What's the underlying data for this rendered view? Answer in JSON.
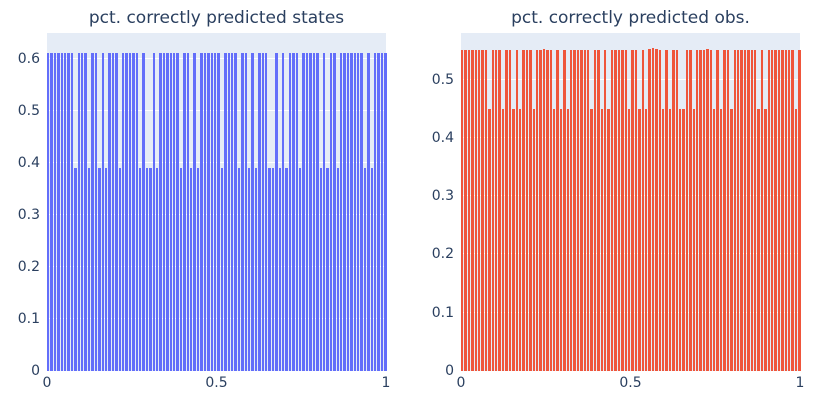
{
  "style": {
    "paper_bg": "#FFFFFF",
    "plot_bg": "#E5ECF6",
    "grid_color": "#FFFFFF",
    "text_color": "#2a3f5f",
    "blue_bar_color": "#636EFA",
    "red_bar_color": "#EF553B"
  },
  "chart_data": [
    {
      "type": "bar",
      "title": "pct. correctly predicted states",
      "bar_color": "#636EFA",
      "xlabel": "",
      "ylabel": "",
      "x_range": [
        0,
        1
      ],
      "n_bars": 100,
      "x_tick_values": [
        0,
        0.5,
        1
      ],
      "x_tick_labels": [
        "0",
        "0.5",
        "1"
      ],
      "y_tick_values": [
        0,
        0.1,
        0.2,
        0.3,
        0.4,
        0.5,
        0.6
      ],
      "y_tick_labels": [
        "0",
        "0.1",
        "0.2",
        "0.3",
        "0.4",
        "0.5",
        "0.6"
      ],
      "ylim": [
        0,
        0.649
      ],
      "grid": true,
      "legend": false,
      "values": [
        0.61,
        0.61,
        0.61,
        0.61,
        0.61,
        0.61,
        0.61,
        0.61,
        0.39,
        0.61,
        0.61,
        0.61,
        0.39,
        0.61,
        0.61,
        0.39,
        0.61,
        0.39,
        0.61,
        0.61,
        0.61,
        0.39,
        0.61,
        0.61,
        0.61,
        0.61,
        0.61,
        0.39,
        0.61,
        0.39,
        0.39,
        0.61,
        0.39,
        0.61,
        0.61,
        0.61,
        0.61,
        0.61,
        0.61,
        0.39,
        0.61,
        0.61,
        0.39,
        0.61,
        0.39,
        0.61,
        0.61,
        0.61,
        0.61,
        0.61,
        0.61,
        0.39,
        0.61,
        0.61,
        0.61,
        0.61,
        0.39,
        0.61,
        0.61,
        0.39,
        0.61,
        0.39,
        0.61,
        0.61,
        0.61,
        0.39,
        0.39,
        0.61,
        0.39,
        0.61,
        0.39,
        0.61,
        0.61,
        0.61,
        0.39,
        0.61,
        0.61,
        0.61,
        0.61,
        0.61,
        0.39,
        0.61,
        0.39,
        0.61,
        0.61,
        0.39,
        0.61,
        0.61,
        0.61,
        0.61,
        0.61,
        0.61,
        0.61,
        0.39,
        0.61,
        0.39,
        0.61,
        0.61,
        0.61,
        0.61
      ]
    },
    {
      "type": "bar",
      "title": "pct. correctly predicted obs.",
      "bar_color": "#EF553B",
      "xlabel": "",
      "ylabel": "",
      "x_range": [
        0,
        1
      ],
      "n_bars": 100,
      "x_tick_values": [
        0,
        0.5,
        1
      ],
      "x_tick_labels": [
        "0",
        "0.5",
        "1"
      ],
      "y_tick_values": [
        0,
        0.1,
        0.2,
        0.3,
        0.4,
        0.5
      ],
      "y_tick_labels": [
        "0",
        "0.1",
        "0.2",
        "0.3",
        "0.4",
        "0.5"
      ],
      "ylim": [
        0,
        0.58
      ],
      "grid": true,
      "legend": false,
      "values": [
        0.55,
        0.55,
        0.55,
        0.55,
        0.55,
        0.55,
        0.55,
        0.55,
        0.45,
        0.55,
        0.55,
        0.55,
        0.45,
        0.55,
        0.55,
        0.45,
        0.55,
        0.45,
        0.55,
        0.55,
        0.55,
        0.45,
        0.55,
        0.55,
        0.552,
        0.55,
        0.55,
        0.45,
        0.55,
        0.45,
        0.55,
        0.45,
        0.55,
        0.55,
        0.55,
        0.55,
        0.55,
        0.55,
        0.45,
        0.55,
        0.55,
        0.45,
        0.55,
        0.45,
        0.55,
        0.55,
        0.55,
        0.55,
        0.55,
        0.45,
        0.55,
        0.55,
        0.45,
        0.55,
        0.45,
        0.553,
        0.555,
        0.553,
        0.55,
        0.45,
        0.55,
        0.45,
        0.55,
        0.55,
        0.45,
        0.45,
        0.55,
        0.55,
        0.45,
        0.55,
        0.55,
        0.55,
        0.552,
        0.55,
        0.45,
        0.55,
        0.45,
        0.55,
        0.55,
        0.45,
        0.55,
        0.55,
        0.55,
        0.55,
        0.55,
        0.55,
        0.55,
        0.45,
        0.55,
        0.45,
        0.55,
        0.55,
        0.55,
        0.55,
        0.55,
        0.55,
        0.55,
        0.55,
        0.45,
        0.55
      ]
    }
  ]
}
